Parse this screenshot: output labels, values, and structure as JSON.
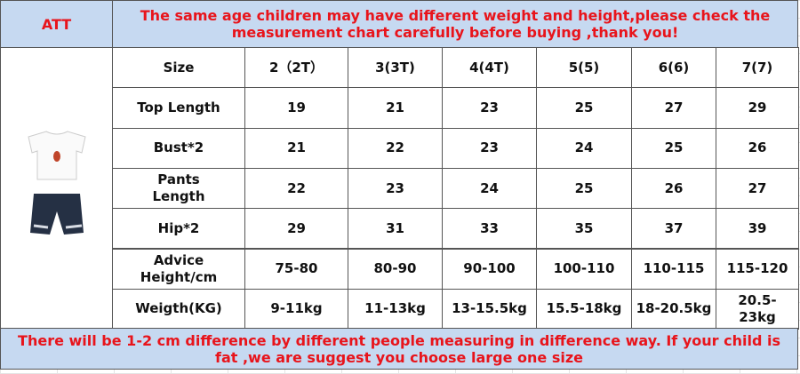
{
  "header": {
    "label": "ATT",
    "notice": "The same age children may have different weight and height,please check the measurement chart carefully before buying ,thank you!"
  },
  "table": {
    "columns": [
      "Size",
      "2（2T）",
      "3(3T)",
      "4(4T)",
      "5(5)",
      "6(6)",
      "7(7)"
    ],
    "rows": [
      [
        "Top Length",
        "19",
        "21",
        "23",
        "25",
        "27",
        "29"
      ],
      [
        "Bust*2",
        "21",
        "22",
        "23",
        "24",
        "25",
        "26"
      ],
      [
        "Pants Length",
        "22",
        "23",
        "24",
        "25",
        "26",
        "27"
      ],
      [
        "Hip*2",
        "29",
        "31",
        "33",
        "35",
        "37",
        "39"
      ],
      [
        "Advice Height/cm",
        "75-80",
        "80-90",
        "90-100",
        "100-110",
        "110-115",
        "115-120"
      ],
      [
        "Weigth(KG)",
        "9-11kg",
        "11-13kg",
        "13-15.5kg",
        "15.5-18kg",
        "18-20.5kg",
        "20.5-23kg"
      ]
    ]
  },
  "footer": {
    "notice": "There will be 1-2 cm difference by different people measuring in difference way. If your child is fat ,we are suggest you choose large one size"
  }
}
